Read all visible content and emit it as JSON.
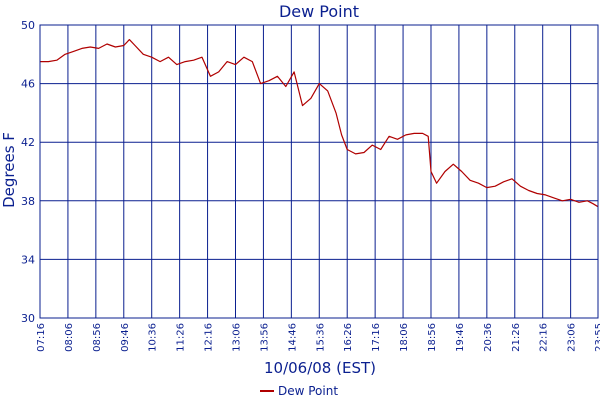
{
  "chart_data": {
    "type": "line",
    "title": "Dew Point",
    "xlabel": "10/06/08 (EST)",
    "ylabel": "Degrees F",
    "ylim": [
      30,
      50
    ],
    "yticks": [
      30,
      34,
      38,
      42,
      46,
      50
    ],
    "xticks": [
      "07:16",
      "08:06",
      "08:56",
      "09:46",
      "10:36",
      "11:26",
      "12:16",
      "13:06",
      "13:56",
      "14:46",
      "15:36",
      "16:26",
      "17:16",
      "18:06",
      "18:56",
      "19:46",
      "20:36",
      "21:26",
      "22:16",
      "23:06",
      "23:55"
    ],
    "grid": true,
    "legend_position": "bottom",
    "colors": {
      "series": "#b00000",
      "grid": "#0a1f8f",
      "text": "#0a1f8f"
    },
    "series": [
      {
        "name": "Dew Point",
        "x": [
          "07:16",
          "07:31",
          "07:46",
          "08:01",
          "08:16",
          "08:31",
          "08:46",
          "09:01",
          "09:16",
          "09:31",
          "09:46",
          "09:56",
          "10:06",
          "10:21",
          "10:36",
          "10:51",
          "11:06",
          "11:21",
          "11:36",
          "11:51",
          "12:06",
          "12:21",
          "12:36",
          "12:51",
          "13:06",
          "13:21",
          "13:36",
          "13:51",
          "14:06",
          "14:21",
          "14:36",
          "14:51",
          "15:06",
          "15:21",
          "15:36",
          "15:51",
          "16:06",
          "16:16",
          "16:26",
          "16:41",
          "16:56",
          "17:11",
          "17:26",
          "17:41",
          "17:56",
          "18:11",
          "18:26",
          "18:41",
          "18:51",
          "18:56",
          "19:06",
          "19:21",
          "19:36",
          "19:51",
          "20:06",
          "20:21",
          "20:36",
          "20:51",
          "21:06",
          "21:21",
          "21:36",
          "21:51",
          "22:06",
          "22:21",
          "22:36",
          "22:51",
          "23:06",
          "23:21",
          "23:36",
          "23:46",
          "23:55"
        ],
        "values": [
          47.5,
          47.5,
          47.6,
          48.0,
          48.2,
          48.4,
          48.5,
          48.4,
          48.7,
          48.5,
          48.6,
          49.0,
          48.6,
          48.0,
          47.8,
          47.5,
          47.8,
          47.3,
          47.5,
          47.6,
          47.8,
          46.5,
          46.8,
          47.5,
          47.3,
          47.8,
          47.5,
          46.0,
          46.2,
          46.5,
          45.8,
          46.8,
          44.5,
          45.0,
          46.0,
          45.5,
          44.0,
          42.5,
          41.5,
          41.2,
          41.3,
          41.8,
          41.5,
          42.4,
          42.2,
          42.5,
          42.6,
          42.6,
          42.4,
          40.0,
          39.2,
          40.0,
          40.5,
          40.0,
          39.4,
          39.2,
          38.9,
          39.0,
          39.3,
          39.5,
          39.0,
          38.7,
          38.5,
          38.4,
          38.2,
          38.0,
          38.1,
          37.9,
          38.0,
          37.8,
          37.6
        ]
      }
    ]
  }
}
